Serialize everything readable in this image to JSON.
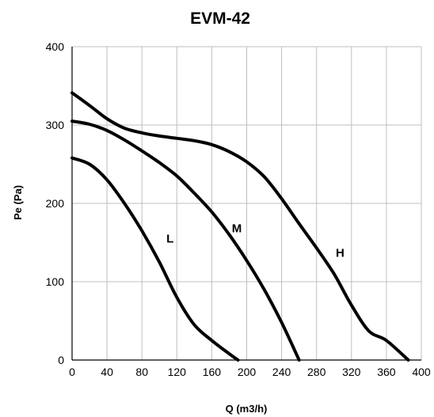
{
  "chart_data": {
    "type": "line",
    "title": "EVM-42",
    "xlabel": "Q (m3/h)",
    "ylabel": "Pe (Pa)",
    "xlim": [
      0,
      400
    ],
    "ylim": [
      0,
      400
    ],
    "x_ticks": [
      0,
      40,
      80,
      120,
      160,
      200,
      240,
      280,
      320,
      360,
      400
    ],
    "y_ticks": [
      0,
      100,
      200,
      300,
      400
    ],
    "grid": true,
    "series": [
      {
        "name": "L",
        "points": [
          [
            0,
            258
          ],
          [
            20,
            250
          ],
          [
            40,
            230
          ],
          [
            60,
            200
          ],
          [
            80,
            165
          ],
          [
            100,
            125
          ],
          [
            120,
            80
          ],
          [
            140,
            45
          ],
          [
            160,
            25
          ],
          [
            180,
            8
          ],
          [
            190,
            0
          ]
        ]
      },
      {
        "name": "M",
        "points": [
          [
            0,
            305
          ],
          [
            20,
            301
          ],
          [
            40,
            293
          ],
          [
            60,
            281
          ],
          [
            80,
            267
          ],
          [
            100,
            252
          ],
          [
            120,
            235
          ],
          [
            140,
            213
          ],
          [
            160,
            189
          ],
          [
            180,
            160
          ],
          [
            200,
            127
          ],
          [
            220,
            90
          ],
          [
            240,
            48
          ],
          [
            260,
            0
          ]
        ]
      },
      {
        "name": "H",
        "points": [
          [
            0,
            341
          ],
          [
            20,
            325
          ],
          [
            40,
            308
          ],
          [
            60,
            296
          ],
          [
            80,
            290
          ],
          [
            100,
            286
          ],
          [
            120,
            283
          ],
          [
            140,
            280
          ],
          [
            160,
            275
          ],
          [
            180,
            266
          ],
          [
            200,
            253
          ],
          [
            220,
            234
          ],
          [
            240,
            206
          ],
          [
            260,
            174
          ],
          [
            280,
            143
          ],
          [
            300,
            110
          ],
          [
            320,
            70
          ],
          [
            340,
            37
          ],
          [
            360,
            25
          ],
          [
            385,
            0
          ]
        ]
      }
    ],
    "curve_labels": [
      {
        "text": "L",
        "x": 108,
        "y": 150
      },
      {
        "text": "M",
        "x": 183,
        "y": 163
      },
      {
        "text": "H",
        "x": 302,
        "y": 132
      }
    ]
  }
}
